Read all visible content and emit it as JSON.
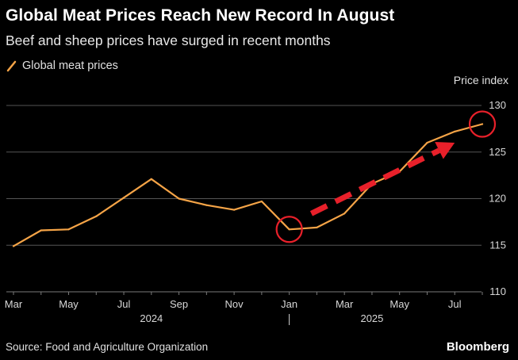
{
  "header": {
    "title": "Global Meat Prices Reach New Record In August",
    "subtitle": "Beef and sheep prices have surged in recent months"
  },
  "legend": {
    "label": "Global meat prices",
    "color": "#f5a447"
  },
  "footer": {
    "source": "Source: Food and Agriculture Organization",
    "brand": "Bloomberg"
  },
  "chart_data": {
    "type": "line",
    "title": "Global Meat Prices Reach New Record In August",
    "subtitle": "Beef and sheep prices have surged in recent months",
    "ylabel": "Price index",
    "xlabel": "",
    "ylim": [
      110,
      130
    ],
    "yticks": [
      110,
      115,
      120,
      125,
      130
    ],
    "grid": true,
    "legend_position": "top-left",
    "x": [
      "2024-03",
      "2024-04",
      "2024-05",
      "2024-06",
      "2024-07",
      "2024-08",
      "2024-09",
      "2024-10",
      "2024-11",
      "2024-12",
      "2025-01",
      "2025-02",
      "2025-03",
      "2025-04",
      "2025-05",
      "2025-06",
      "2025-07",
      "2025-08"
    ],
    "x_tick_labels": [
      {
        "label": "Mar",
        "index": 0
      },
      {
        "label": "May",
        "index": 2
      },
      {
        "label": "Jul",
        "index": 4
      },
      {
        "label": "Sep",
        "index": 6
      },
      {
        "label": "Nov",
        "index": 8
      },
      {
        "label": "Jan",
        "index": 10
      },
      {
        "label": "Mar",
        "index": 12
      },
      {
        "label": "May",
        "index": 14
      },
      {
        "label": "Jul",
        "index": 16
      }
    ],
    "x_year_labels": [
      {
        "label": "2024",
        "index": 5
      },
      {
        "label": "2025",
        "index": 13
      }
    ],
    "year_separator_index": 10,
    "series": [
      {
        "name": "Global meat prices",
        "color": "#f5a447",
        "values": [
          114.9,
          116.6,
          116.7,
          118.1,
          120.1,
          122.1,
          120.0,
          119.3,
          118.8,
          119.7,
          116.7,
          116.9,
          118.4,
          121.6,
          122.9,
          126.0,
          127.2,
          128.0
        ]
      }
    ],
    "annotations": {
      "circles": [
        {
          "label": "low",
          "index": 10
        },
        {
          "label": "record",
          "index": 17
        }
      ],
      "arrow": {
        "from_index": 10.8,
        "to_index": 16.0,
        "from_value": 118.4,
        "to_value": 126.0
      },
      "color": "#e8202a"
    }
  }
}
